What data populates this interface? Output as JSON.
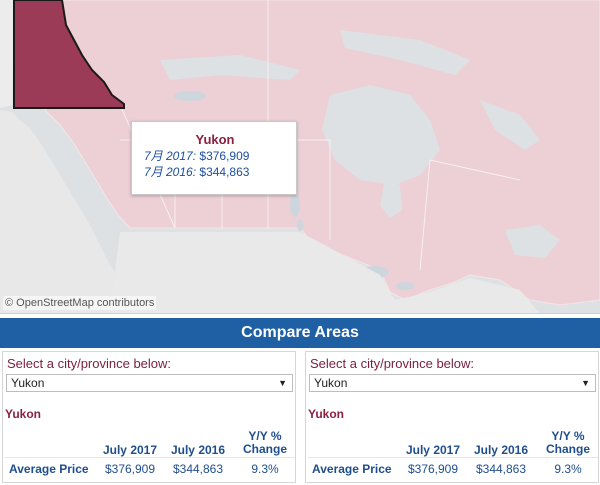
{
  "map": {
    "attribution": "© OpenStreetMap contributors",
    "highlight_color": "#9b3b57",
    "land_color": "#ecd0d6",
    "tooltip": {
      "title": "Yukon",
      "line1_label": "7月 2017:",
      "line1_value": "$376,909",
      "line2_label": "7月 2016:",
      "line2_value": "$344,863"
    }
  },
  "compare": {
    "title": "Compare Areas",
    "panels": [
      {
        "select_label": "Select a city/province below:",
        "selected": "Yukon",
        "region": "Yukon",
        "col_2017": "July 2017",
        "col_2016": "July 2016",
        "col_yy_line1": "Y/Y %",
        "col_yy_line2": "Change",
        "row_label": "Average Price",
        "val_2017": "$376,909",
        "val_2016": "$344,863",
        "val_yy": "9.3%"
      },
      {
        "select_label": "Select a city/province below:",
        "selected": "Yukon",
        "region": "Yukon",
        "col_2017": "July 2017",
        "col_2016": "July 2016",
        "col_yy_line1": "Y/Y %",
        "col_yy_line2": "Change",
        "row_label": "Average Price",
        "val_2017": "$376,909",
        "val_2016": "$344,863",
        "val_yy": "9.3%"
      }
    ]
  }
}
